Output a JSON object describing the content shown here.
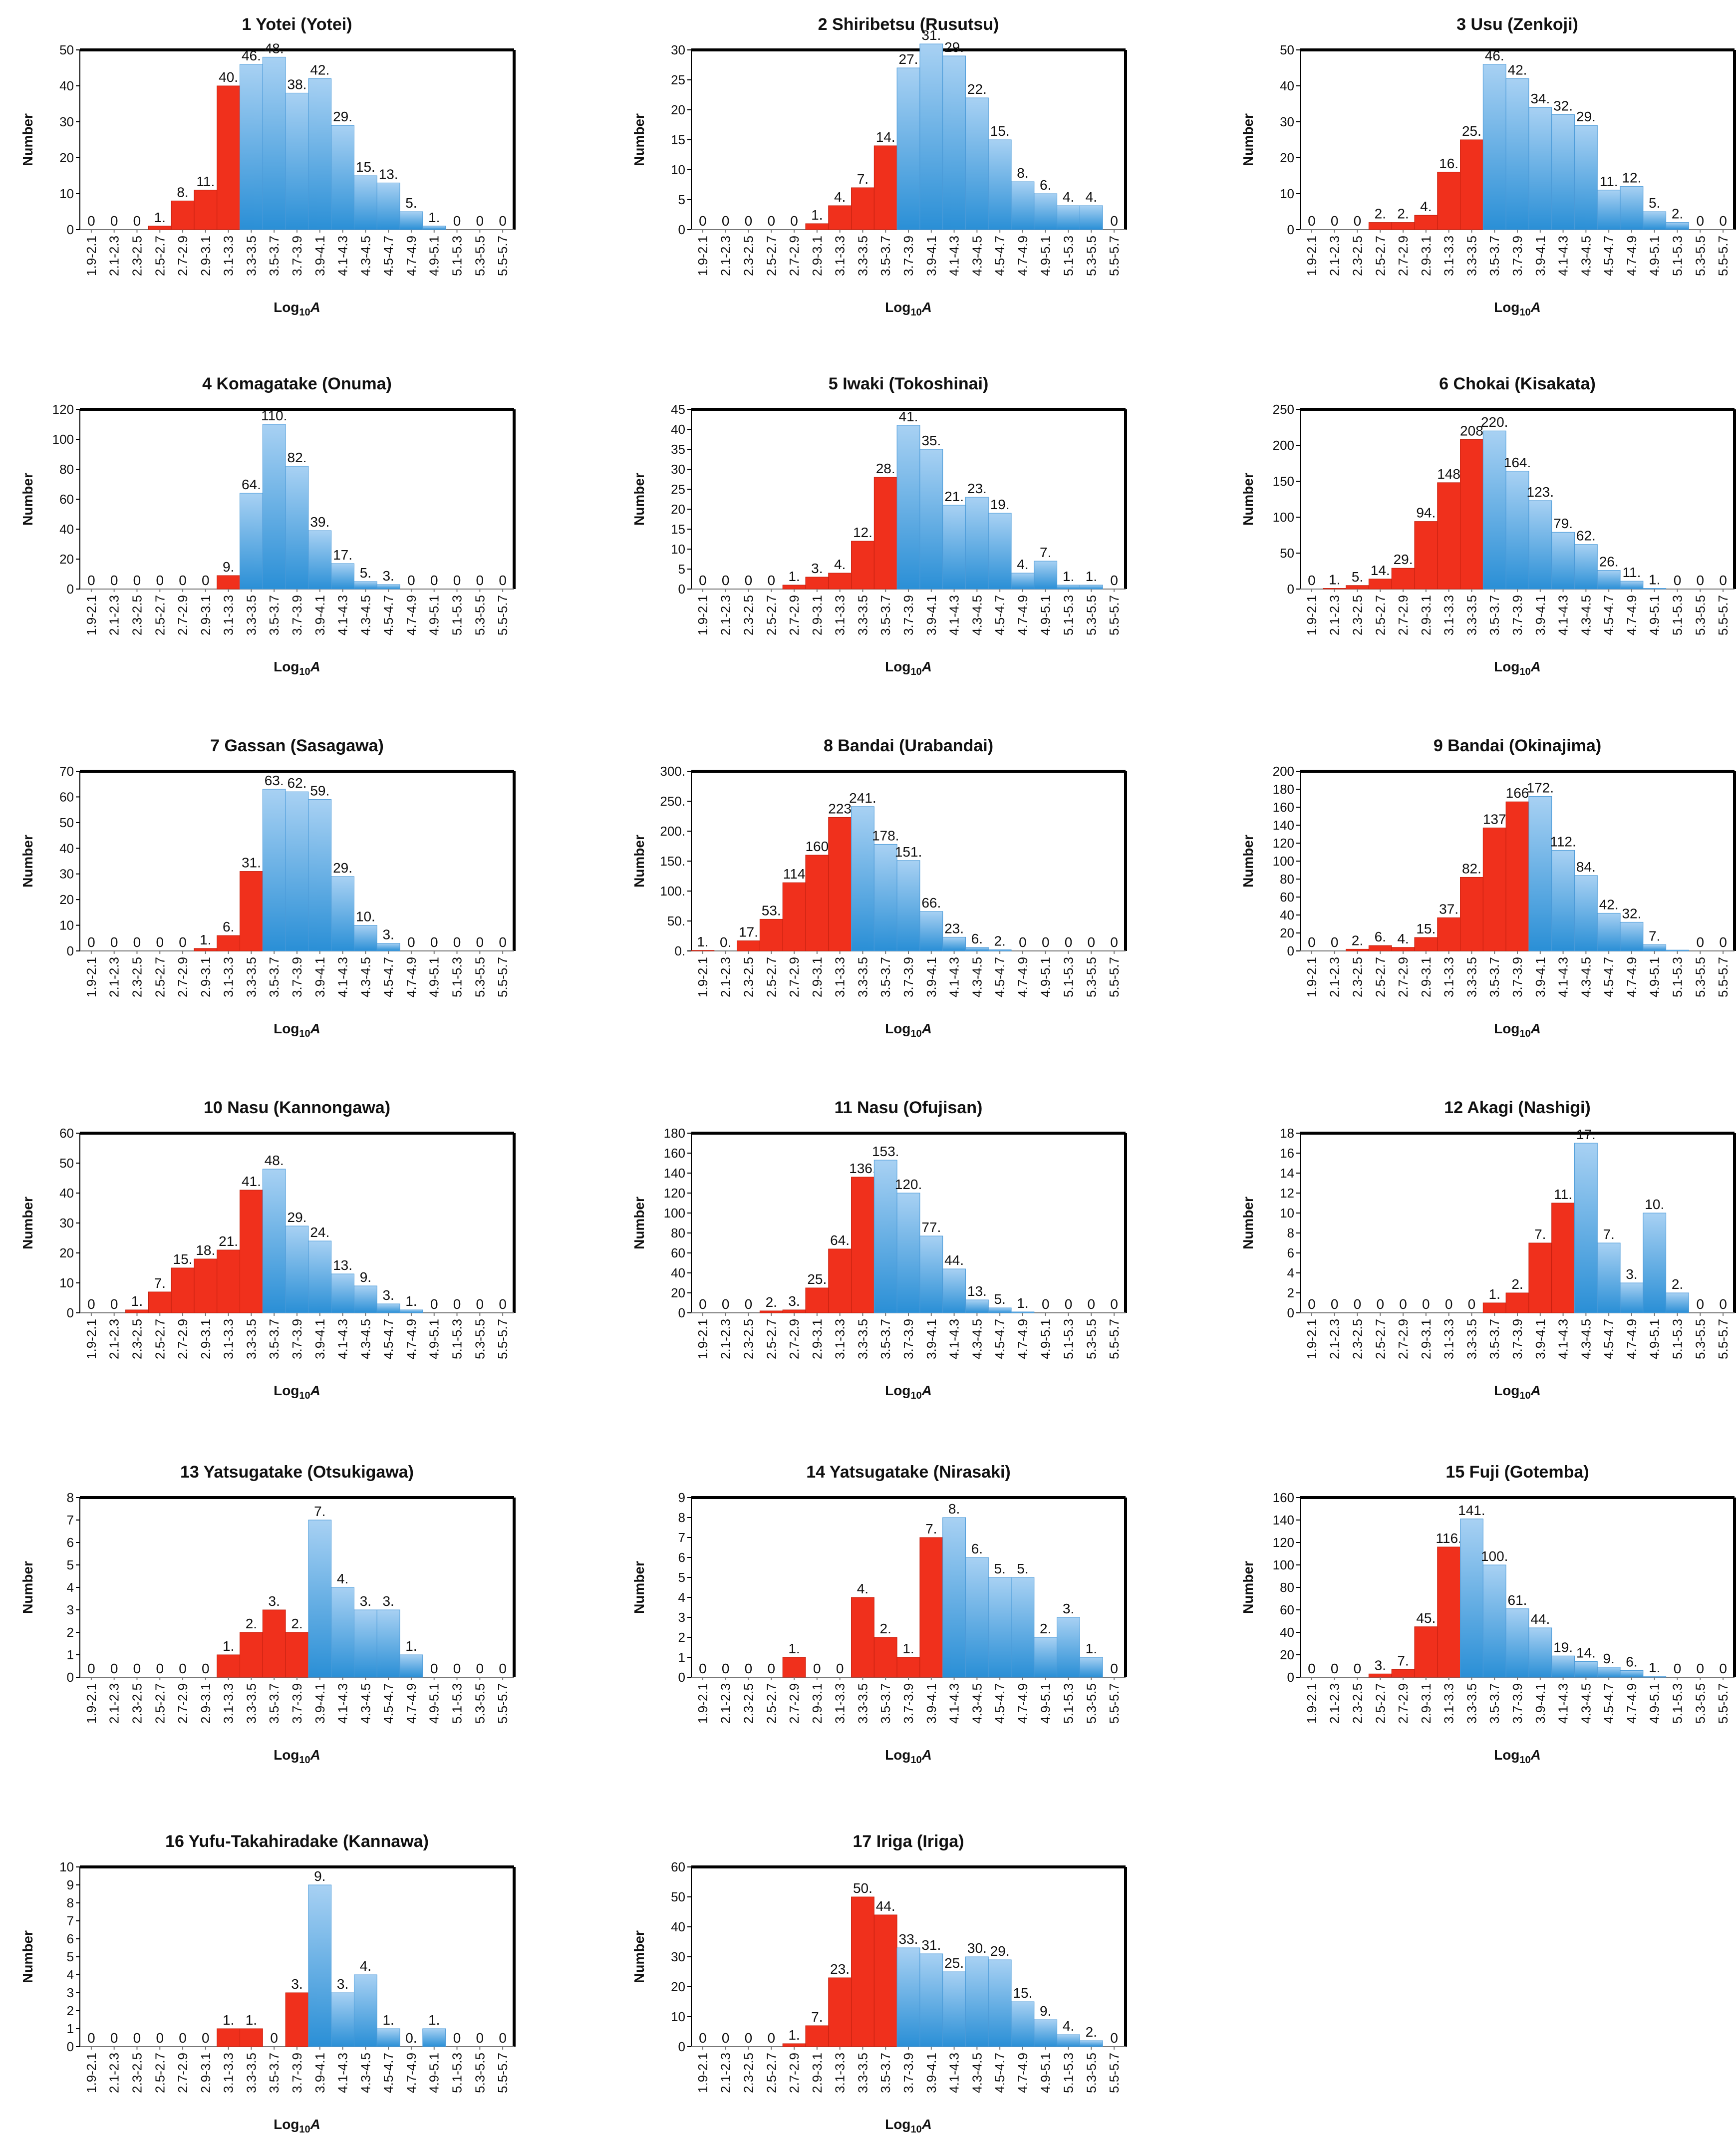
{
  "colors": {
    "red": "#f0301c",
    "blue_top": "#a8d1f3",
    "blue_bottom": "#2a8fd6",
    "frame": "#000000"
  },
  "common": {
    "xlabel": "Log10A",
    "ylabel": "Number",
    "categories": [
      "1.9-2.1",
      "2.1-2.3",
      "2.3-2.5",
      "2.5-2.7",
      "2.7-2.9",
      "2.9-3.1",
      "3.1-3.3",
      "3.3-3.5",
      "3.5-3.7",
      "3.7-3.9",
      "3.9-4.1",
      "4.1-4.3",
      "4.3-4.5",
      "4.5-4.7",
      "4.7-4.9",
      "4.9-5.1",
      "5.1-5.3",
      "5.3-5.5",
      "5.5-5.7"
    ]
  },
  "chart_data": [
    {
      "type": "bar",
      "title": "1 Yotei (Yotei)",
      "ymax": 50,
      "ystep": 10,
      "ticks": [
        "0",
        "10",
        "20",
        "30",
        "40",
        "50"
      ],
      "split": 7,
      "values": [
        0,
        0,
        0,
        1,
        8,
        11,
        40,
        46,
        48,
        38,
        42,
        29,
        15,
        13,
        5,
        1,
        0,
        0,
        0
      ],
      "labels": [
        "0",
        "0",
        "0",
        "1.",
        "8.",
        "11.",
        "40.",
        "46.",
        "48.",
        "38.",
        "42.",
        "29.",
        "15.",
        "13.",
        "5.",
        "1.",
        "0",
        "0",
        "0"
      ]
    },
    {
      "type": "bar",
      "title": "2 Shiribetsu (Rusutsu)",
      "ymax": 30,
      "ystep": 5,
      "ticks": [
        "0",
        "5",
        "10",
        "15",
        "20",
        "25",
        "30"
      ],
      "split": 9,
      "values": [
        0,
        0,
        0,
        0,
        0,
        1,
        4,
        7,
        14,
        27,
        31,
        29,
        22,
        15,
        8,
        6,
        4,
        4,
        0
      ],
      "labels": [
        "0",
        "0",
        "0",
        "0",
        "0",
        "1.",
        "4.",
        "7.",
        "14.",
        "27.",
        "31.",
        "29.",
        "22.",
        "15.",
        "8.",
        "6.",
        "4.",
        "4.",
        "0"
      ]
    },
    {
      "type": "bar",
      "title": "3 Usu (Zenkoji)",
      "ymax": 50,
      "ystep": 10,
      "ticks": [
        "0",
        "10",
        "20",
        "30",
        "40",
        "50"
      ],
      "split": 8,
      "values": [
        0,
        0,
        0,
        2,
        2,
        4,
        16,
        25,
        46,
        42,
        34,
        32,
        29,
        11,
        12,
        5,
        2,
        0,
        0
      ],
      "labels": [
        "0",
        "0",
        "0",
        "2.",
        "2.",
        "4.",
        "16.",
        "25.",
        "46.",
        "42.",
        "34.",
        "32.",
        "29.",
        "11.",
        "12.",
        "5.",
        "2.",
        "0",
        "0"
      ]
    },
    {
      "type": "bar",
      "title": "4 Komagatake (Onuma)",
      "ymax": 120,
      "ystep": 20,
      "ticks": [
        "0",
        "20",
        "40",
        "60",
        "80",
        "100",
        "120"
      ],
      "split": 7,
      "values": [
        0,
        0,
        0,
        0,
        0,
        0,
        9,
        64,
        110,
        82,
        39,
        17,
        5,
        3,
        0,
        0,
        0,
        0,
        0
      ],
      "labels": [
        "0",
        "0",
        "0",
        "0",
        "0",
        "0",
        "9.",
        "64.",
        "110.",
        "82.",
        "39.",
        "17.",
        "5.",
        "3.",
        "0",
        "0",
        "0",
        "0",
        "0"
      ]
    },
    {
      "type": "bar",
      "title": "5 Iwaki (Tokoshinai)",
      "ymax": 45,
      "ystep": 5,
      "ticks": [
        "0",
        "5",
        "10",
        "15",
        "20",
        "25",
        "30",
        "35",
        "40",
        "45"
      ],
      "split": 9,
      "values": [
        0,
        0,
        0,
        0,
        1,
        3,
        4,
        12,
        28,
        41,
        35,
        21,
        23,
        19,
        4,
        7,
        1,
        1,
        0
      ],
      "labels": [
        "0",
        "0",
        "0",
        "0",
        "1.",
        "3.",
        "4.",
        "12.",
        "28.",
        "41.",
        "35.",
        "21.",
        "23.",
        "19.",
        "4.",
        "7.",
        "1.",
        "1.",
        "0"
      ]
    },
    {
      "type": "bar",
      "title": "6 Chokai (Kisakata)",
      "ymax": 250,
      "ystep": 50,
      "ticks": [
        "0",
        "50",
        "100",
        "150",
        "200",
        "250"
      ],
      "split": 8,
      "values": [
        0,
        1,
        5,
        14,
        29,
        94,
        148,
        208,
        220,
        164,
        123,
        79,
        62,
        26,
        11,
        1,
        0,
        0,
        0
      ],
      "labels": [
        "0",
        "1.",
        "5.",
        "14.",
        "29.",
        "94.",
        "148",
        "208",
        "220.",
        "164.",
        "123.",
        "79.",
        "62.",
        "26.",
        "11.",
        "1.",
        "0",
        "0",
        "0"
      ]
    },
    {
      "type": "bar",
      "title": "7 Gassan (Sasagawa)",
      "ymax": 70,
      "ystep": 10,
      "ticks": [
        "0",
        "10",
        "20",
        "30",
        "40",
        "50",
        "60",
        "70"
      ],
      "split": 8,
      "values": [
        0,
        0,
        0,
        0,
        0,
        1,
        6,
        31,
        63,
        62,
        59,
        29,
        10,
        3,
        0,
        0,
        0,
        0,
        0
      ],
      "labels": [
        "0",
        "0",
        "0",
        "0",
        "0",
        "1.",
        "6.",
        "31.",
        "63.",
        "62.",
        "59.",
        "29.",
        "10.",
        "3.",
        "0",
        "0",
        "0",
        "0",
        "0"
      ]
    },
    {
      "type": "bar",
      "title": "8 Bandai (Urabandai)",
      "ymax": 300,
      "ystep": 50,
      "ticks": [
        "0.",
        "50.",
        "100.",
        "150.",
        "200.",
        "250.",
        "300."
      ],
      "split": 7,
      "values": [
        1,
        0,
        17,
        53,
        114,
        160,
        223,
        241,
        178,
        151,
        66,
        23,
        6,
        2,
        0,
        0,
        0,
        0,
        0
      ],
      "labels": [
        "1.",
        "0.",
        "17.",
        "53.",
        "114",
        "160",
        "223",
        "241.",
        "178.",
        "151.",
        "66.",
        "23.",
        "6.",
        "2.",
        "0",
        "0",
        "0",
        "0",
        "0"
      ]
    },
    {
      "type": "bar",
      "title": "9 Bandai (Okinajima)",
      "ymax": 200,
      "ystep": 20,
      "ticks": [
        "0",
        "20",
        "40",
        "60",
        "80",
        "100",
        "120",
        "140",
        "160",
        "180",
        "200"
      ],
      "split": 10,
      "values": [
        0,
        0,
        2,
        6,
        4,
        15,
        37,
        82,
        137,
        166,
        172,
        112,
        84,
        42,
        32,
        7,
        1,
        0,
        0
      ],
      "labels": [
        "0",
        "0",
        "2.",
        "6.",
        "4.",
        "15.",
        "37.",
        "82.",
        "137",
        "166",
        "172.",
        "112.",
        "84.",
        "42.",
        "32.",
        "7.",
        "",
        "0",
        "0"
      ]
    },
    {
      "type": "bar",
      "title": "10 Nasu (Kannongawa)",
      "ymax": 60,
      "ystep": 10,
      "ticks": [
        "0",
        "10",
        "20",
        "30",
        "40",
        "50",
        "60"
      ],
      "split": 8,
      "values": [
        0,
        0,
        1,
        7,
        15,
        18,
        21,
        41,
        48,
        29,
        24,
        13,
        9,
        3,
        1,
        0,
        0,
        0,
        0
      ],
      "labels": [
        "0",
        "0",
        "1.",
        "7.",
        "15.",
        "18.",
        "21.",
        "41.",
        "48.",
        "29.",
        "24.",
        "13.",
        "9.",
        "3.",
        "1.",
        "0",
        "0",
        "0",
        "0"
      ]
    },
    {
      "type": "bar",
      "title": "11 Nasu (Ofujisan)",
      "ymax": 180,
      "ystep": 20,
      "ticks": [
        "0",
        "20",
        "40",
        "60",
        "80",
        "100",
        "120",
        "140",
        "160",
        "180"
      ],
      "split": 8,
      "values": [
        0,
        0,
        0,
        2,
        3,
        25,
        64,
        136,
        153,
        120,
        77,
        44,
        13,
        5,
        1,
        0,
        0,
        0,
        0
      ],
      "labels": [
        "0",
        "0",
        "0",
        "2.",
        "3.",
        "25.",
        "64.",
        "136.",
        "153.",
        "120.",
        "77.",
        "44.",
        "13.",
        "5.",
        "1.",
        "0",
        "0",
        "0",
        "0"
      ]
    },
    {
      "type": "bar",
      "title": "12 Akagi (Nashigi)",
      "ymax": 18,
      "ystep": 2,
      "ticks": [
        "0",
        "2",
        "4",
        "6",
        "8",
        "10",
        "12",
        "14",
        "16",
        "18"
      ],
      "split": 12,
      "values": [
        0,
        0,
        0,
        0,
        0,
        0,
        0,
        0,
        1,
        2,
        7,
        11,
        17,
        7,
        3,
        10,
        2,
        0,
        0
      ],
      "labels": [
        "0",
        "0",
        "0",
        "0",
        "0",
        "0",
        "0",
        "0",
        "1.",
        "2.",
        "7.",
        "11.",
        "17.",
        "7.",
        "3.",
        "10.",
        "2.",
        "0",
        "0"
      ]
    },
    {
      "type": "bar",
      "title": "13 Yatsugatake (Otsukigawa)",
      "ymax": 8,
      "ystep": 1,
      "ticks": [
        "0",
        "1",
        "2",
        "3",
        "4",
        "5",
        "6",
        "7",
        "8"
      ],
      "split": 10,
      "values": [
        0,
        0,
        0,
        0,
        0,
        0,
        1,
        2,
        3,
        2,
        7,
        4,
        3,
        3,
        1,
        0,
        0,
        0,
        0
      ],
      "labels": [
        "0",
        "0",
        "0",
        "0",
        "0",
        "0",
        "1.",
        "2.",
        "3.",
        "2.",
        "7.",
        "4.",
        "3.",
        "3.",
        "1.",
        "0",
        "0",
        "0",
        "0"
      ]
    },
    {
      "type": "bar",
      "title": "14 Yatsugatake (Nirasaki)",
      "ymax": 9,
      "ystep": 1,
      "ticks": [
        "0",
        "1",
        "2",
        "3",
        "4",
        "5",
        "6",
        "7",
        "8",
        "9"
      ],
      "split": 11,
      "values": [
        0,
        0,
        0,
        0,
        1,
        0,
        0,
        4,
        2,
        1,
        7,
        8,
        6,
        5,
        5,
        2,
        3,
        1,
        0
      ],
      "labels": [
        "0",
        "0",
        "0",
        "0",
        "1.",
        "0",
        "0",
        "4.",
        "2.",
        "1.",
        "7.",
        "8.",
        "6.",
        "5.",
        "5.",
        "2.",
        "3.",
        "1.",
        "0"
      ]
    },
    {
      "type": "bar",
      "title": "15 Fuji (Gotemba)",
      "ymax": 160,
      "ystep": 20,
      "ticks": [
        "0",
        "20",
        "40",
        "60",
        "80",
        "100",
        "120",
        "140",
        "160"
      ],
      "split": 7,
      "values": [
        0,
        0,
        0,
        3,
        7,
        45,
        116,
        141,
        100,
        61,
        44,
        19,
        14,
        9,
        6,
        1,
        0,
        0,
        0
      ],
      "labels": [
        "0",
        "0",
        "0",
        "3.",
        "7.",
        "45.",
        "116.",
        "141.",
        "100.",
        "61.",
        "44.",
        "19.",
        "14.",
        "9.",
        "6.",
        "1.",
        "0",
        "0",
        "0"
      ]
    },
    {
      "type": "bar",
      "title": "16 Yufu-Takahiradake (Kannawa)",
      "ymax": 10,
      "ystep": 1,
      "ticks": [
        "0",
        "1",
        "2",
        "3",
        "4",
        "5",
        "6",
        "7",
        "8",
        "9",
        "10"
      ],
      "split": 10,
      "values": [
        0,
        0,
        0,
        0,
        0,
        0,
        1,
        1,
        0,
        3,
        9,
        3,
        4,
        1,
        0,
        1,
        0,
        0,
        0
      ],
      "labels": [
        "0",
        "0",
        "0",
        "0",
        "0",
        "0",
        "1.",
        "1.",
        "0",
        "3.",
        "9.",
        "3.",
        "4.",
        "1.",
        "0.",
        "1.",
        "0",
        "0",
        "0"
      ]
    },
    {
      "type": "bar",
      "title": "17 Iriga (Iriga)",
      "ymax": 60,
      "ystep": 10,
      "ticks": [
        "0",
        "10",
        "20",
        "30",
        "40",
        "50",
        "60"
      ],
      "split": 9,
      "values": [
        0,
        0,
        0,
        0,
        1,
        7,
        23,
        50,
        44,
        33,
        31,
        25,
        30,
        29,
        15,
        9,
        4,
        2,
        0
      ],
      "labels": [
        "0",
        "0",
        "0",
        "0",
        "1.",
        "7.",
        "23.",
        "50.",
        "44.",
        "33.",
        "31.",
        "25.",
        "30.",
        "29.",
        "15.",
        "9.",
        "4.",
        "2.",
        "0"
      ]
    }
  ]
}
